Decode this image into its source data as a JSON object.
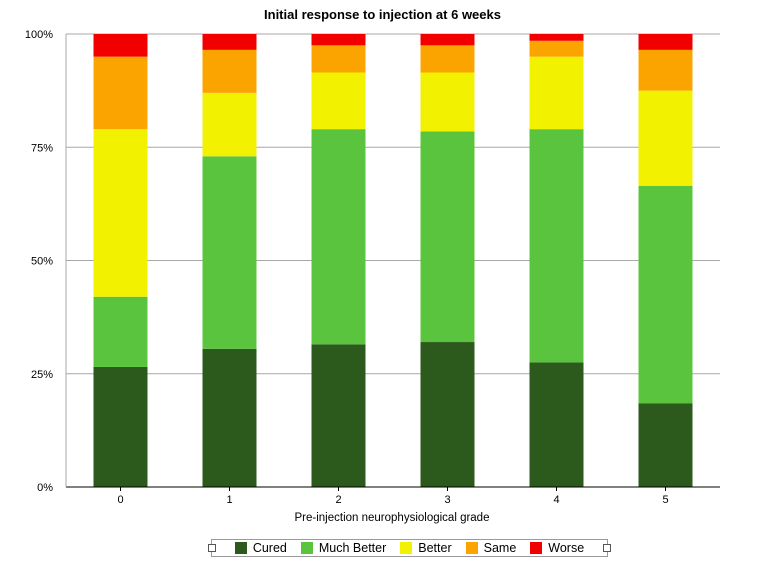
{
  "chart_data": {
    "type": "bar",
    "stacked": true,
    "title": "Initial response to injection at 6 weeks",
    "xlabel": "Pre-injection neurophysiological grade",
    "ylabel": "",
    "categories": [
      "0",
      "1",
      "2",
      "3",
      "4",
      "5"
    ],
    "y_ticks": [
      "0%",
      "25%",
      "50%",
      "75%",
      "100%"
    ],
    "ylim": [
      0,
      100
    ],
    "grid": true,
    "legend_position": "bottom",
    "series": [
      {
        "name": "Cured",
        "color": "#2c5a1d",
        "values": [
          26.5,
          30.5,
          31.5,
          32.0,
          27.5,
          18.5
        ]
      },
      {
        "name": "Much Better",
        "color": "#5bc43f",
        "values": [
          15.5,
          42.5,
          47.5,
          46.5,
          51.5,
          48.0
        ]
      },
      {
        "name": "Better",
        "color": "#f2f200",
        "values": [
          37.0,
          14.0,
          12.5,
          13.0,
          16.0,
          21.0
        ]
      },
      {
        "name": "Same",
        "color": "#fba400",
        "values": [
          16.0,
          9.5,
          6.0,
          6.0,
          3.5,
          9.0
        ]
      },
      {
        "name": "Worse",
        "color": "#f20000",
        "values": [
          5.0,
          3.5,
          2.5,
          2.5,
          1.5,
          3.5
        ]
      }
    ]
  }
}
